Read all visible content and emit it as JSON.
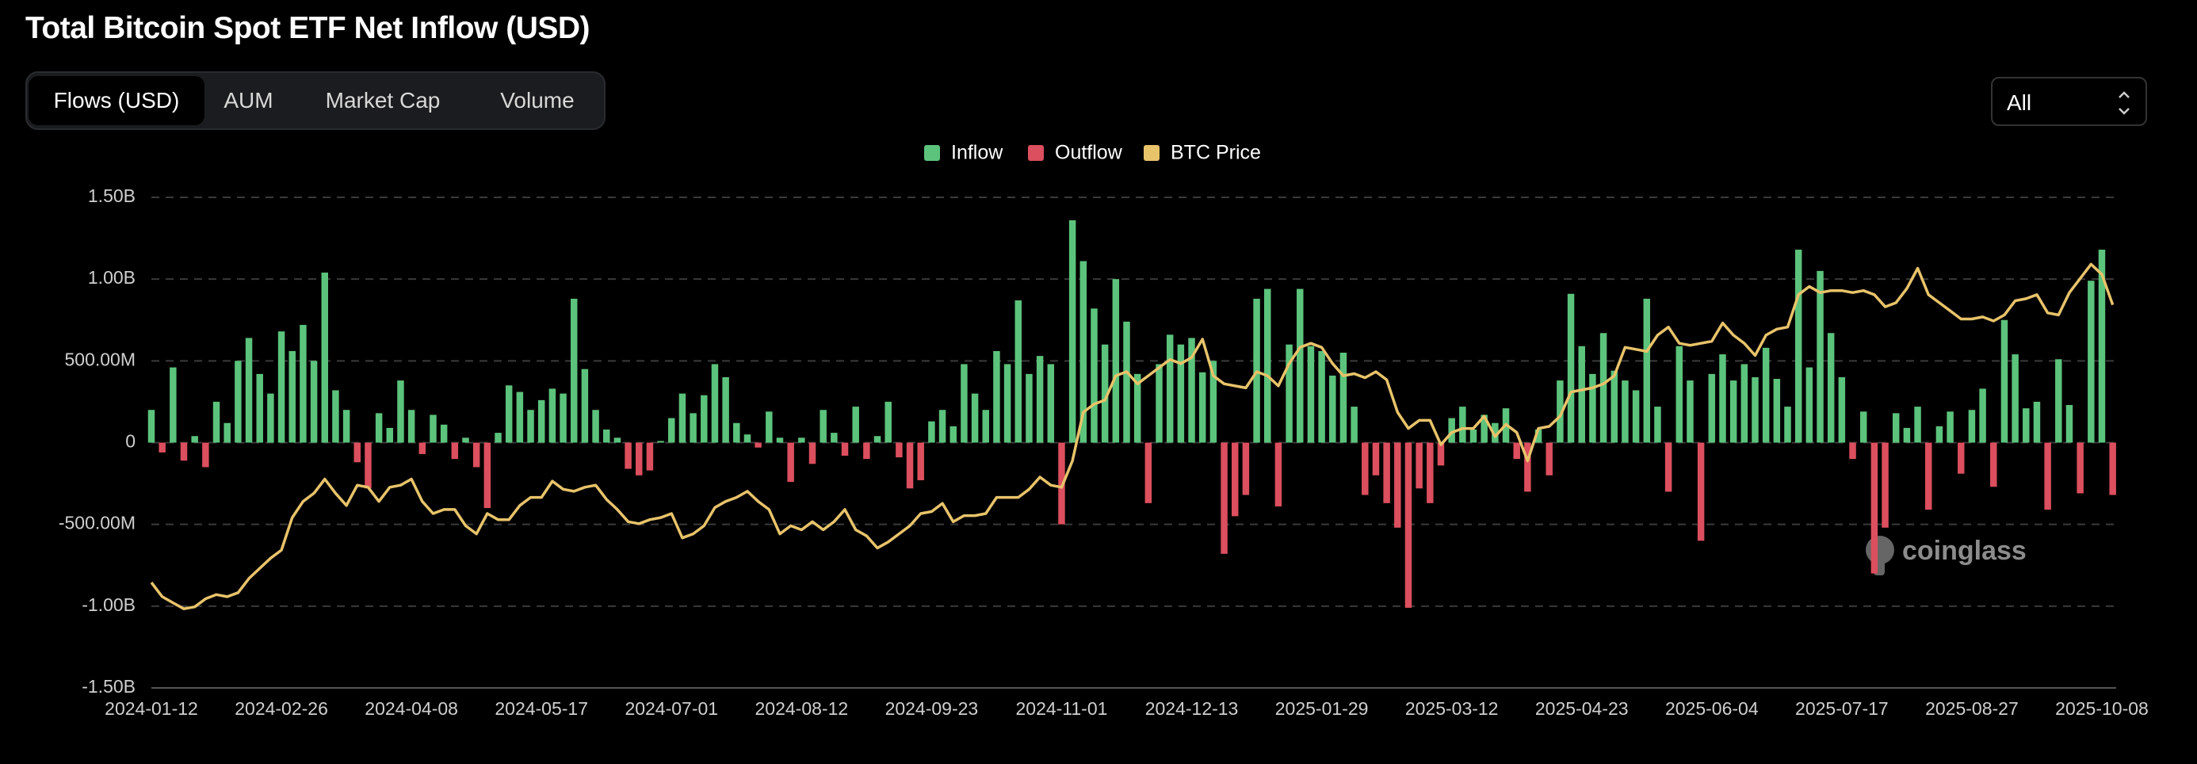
{
  "header": {
    "title": "Total Bitcoin Spot ETF Net Inflow (USD)"
  },
  "tabs": [
    "Flows (USD)",
    "AUM",
    "Market Cap",
    "Volume"
  ],
  "active_tab": 0,
  "range_select": "All",
  "watermark": "coinglass",
  "chart_data": {
    "type": "bar",
    "categories": [
      "2024-01-12",
      null,
      null,
      null,
      null,
      null,
      null,
      null,
      null,
      null,
      null,
      null,
      "2024-02-26",
      null,
      null,
      null,
      null,
      null,
      null,
      null,
      null,
      null,
      null,
      null,
      "2024-04-08",
      null,
      null,
      null,
      null,
      null,
      null,
      null,
      null,
      null,
      null,
      null,
      "2024-05-17",
      null,
      null,
      null,
      null,
      null,
      null,
      null,
      null,
      null,
      null,
      null,
      "2024-07-01",
      null,
      null,
      null,
      null,
      null,
      null,
      null,
      null,
      null,
      null,
      null,
      "2024-08-12",
      null,
      null,
      null,
      null,
      null,
      null,
      null,
      null,
      null,
      null,
      null,
      "2024-09-23",
      null,
      null,
      null,
      null,
      null,
      null,
      null,
      null,
      null,
      null,
      null,
      "2024-11-01",
      null,
      null,
      null,
      null,
      null,
      null,
      null,
      null,
      null,
      null,
      null,
      "2024-12-13",
      null,
      null,
      null,
      null,
      null,
      null,
      null,
      null,
      null,
      null,
      null,
      "2025-01-29",
      null,
      null,
      null,
      null,
      null,
      null,
      null,
      null,
      null,
      null,
      null,
      "2025-03-12",
      null,
      null,
      null,
      null,
      null,
      null,
      null,
      null,
      null,
      null,
      null,
      "2025-04-23",
      null,
      null,
      null,
      null,
      null,
      null,
      null,
      null,
      null,
      null,
      null,
      "2025-06-04",
      null,
      null,
      null,
      null,
      null,
      null,
      null,
      null,
      null,
      null,
      null,
      "2025-07-17",
      null,
      null,
      null,
      null,
      null,
      null,
      null,
      null,
      null,
      null,
      null,
      "2025-08-27",
      null,
      null,
      null,
      null,
      null,
      null,
      null,
      null,
      null,
      null,
      null,
      "2025-10-08",
      null
    ],
    "values": [
      200,
      -60,
      460,
      -110,
      40,
      -150,
      250,
      120,
      500,
      640,
      420,
      300,
      680,
      560,
      720,
      500,
      1040,
      320,
      200,
      -120,
      -280,
      180,
      90,
      380,
      200,
      -70,
      170,
      110,
      -100,
      30,
      -150,
      -400,
      60,
      350,
      310,
      200,
      260,
      330,
      300,
      880,
      450,
      200,
      80,
      30,
      -160,
      -200,
      -170,
      10,
      150,
      300,
      180,
      290,
      480,
      400,
      120,
      50,
      -30,
      190,
      30,
      -240,
      30,
      -130,
      200,
      60,
      -80,
      220,
      -100,
      40,
      250,
      -90,
      -280,
      -230,
      130,
      200,
      100,
      480,
      300,
      200,
      560,
      480,
      870,
      420,
      530,
      480,
      -500,
      1360,
      1110,
      820,
      600,
      1000,
      740,
      420,
      -370,
      480,
      660,
      600,
      640,
      430,
      500,
      -680,
      -450,
      -320,
      880,
      940,
      -390,
      600,
      940,
      590,
      560,
      410,
      550,
      220,
      -320,
      -200,
      -370,
      -520,
      -1010,
      -280,
      -370,
      -140,
      150,
      220,
      80,
      170,
      120,
      210,
      -100,
      -300,
      80,
      -200,
      380,
      910,
      590,
      420,
      670,
      440,
      380,
      320,
      880,
      220,
      -300,
      590,
      380,
      -600,
      420,
      540,
      380,
      480,
      400,
      580,
      390,
      220,
      1180,
      460,
      1050,
      670,
      400,
      -100,
      190,
      -800,
      -520,
      180,
      90,
      220,
      -410,
      100,
      190,
      -190,
      200,
      330,
      -270,
      750,
      540,
      210,
      250,
      -410,
      510,
      230,
      -310,
      990,
      1180,
      -320
    ],
    "series": [
      {
        "name": "Inflow",
        "color": "#5cc37c"
      },
      {
        "name": "Outflow",
        "color": "#dc4f5e"
      },
      {
        "name": "BTC Price",
        "color": "#e8c36a",
        "axis": "y2",
        "values": [
          46000,
          42500,
          41000,
          39500,
          40000,
          42000,
          43000,
          42500,
          43500,
          47000,
          49500,
          52000,
          54000,
          62000,
          66000,
          68000,
          71500,
          68000,
          65000,
          70000,
          69500,
          66000,
          69500,
          70000,
          71500,
          66000,
          63000,
          64000,
          64000,
          60000,
          58000,
          63000,
          61500,
          61500,
          65000,
          67000,
          67000,
          71000,
          69000,
          68500,
          69500,
          70000,
          66500,
          64000,
          61000,
          60500,
          61500,
          62000,
          63000,
          57000,
          58000,
          60000,
          64500,
          66000,
          67000,
          68500,
          66000,
          64000,
          58000,
          60000,
          59000,
          61000,
          59000,
          61000,
          64000,
          59000,
          57500,
          54500,
          56000,
          58000,
          60000,
          63000,
          63500,
          65500,
          61000,
          62500,
          62500,
          63000,
          67000,
          67000,
          67000,
          69000,
          72000,
          70000,
          69500,
          76000,
          88000,
          90000,
          91000,
          97000,
          98000,
          95000,
          97000,
          99000,
          101000,
          100000,
          101500,
          106000,
          97000,
          95000,
          94500,
          94000,
          98000,
          97000,
          94500,
          100000,
          104000,
          105000,
          104000,
          100000,
          97000,
          97500,
          96500,
          98000,
          96000,
          88000,
          84000,
          86000,
          86000,
          80000,
          83000,
          84000,
          84000,
          87000,
          82000,
          85000,
          83000,
          76000,
          84000,
          84500,
          87000,
          93000,
          93500,
          94000,
          95000,
          97000,
          104000,
          103500,
          103000,
          107000,
          109000,
          105000,
          104500,
          105000,
          105500,
          110000,
          107000,
          105000,
          102000,
          107000,
          108500,
          109000,
          117000,
          119000,
          117500,
          118000,
          118000,
          117500,
          118000,
          117000,
          114000,
          115000,
          118500,
          123500,
          117000,
          115000,
          113000,
          111000,
          111000,
          111500,
          110500,
          112000,
          115500,
          116000,
          117000,
          112500,
          112000,
          117500,
          121000,
          124500,
          122000,
          114500
        ]
      }
    ],
    "ylim": [
      -1500,
      1500
    ],
    "yticks": [
      {
        "value": -1500,
        "label": "-1.50B"
      },
      {
        "value": -1000,
        "label": "-1.00B"
      },
      {
        "value": -500,
        "label": "-500.00M"
      },
      0,
      {
        "value": 500,
        "label": "500.00M"
      },
      {
        "value": 1000,
        "label": "1.00B"
      },
      {
        "value": 1500,
        "label": "1.50B"
      }
    ],
    "y2lim": [
      20000,
      141000
    ],
    "grid": true
  }
}
